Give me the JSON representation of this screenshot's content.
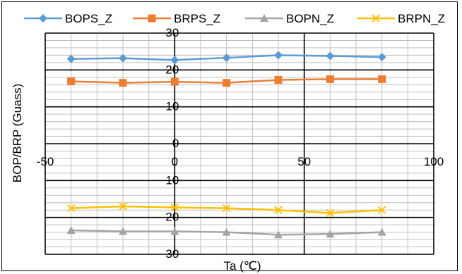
{
  "chart_data": {
    "type": "line",
    "title": "",
    "xlabel": "Ta (℃)",
    "ylabel": "BOP/BRP (Guass)",
    "xlim": [
      -50,
      100
    ],
    "ylim": [
      -30,
      30
    ],
    "x_ticks": [
      "-50",
      "0",
      "50",
      "100"
    ],
    "y_ticks": [
      "30",
      "20",
      "10",
      "0",
      "-10",
      "-20",
      "-30"
    ],
    "grid": true,
    "legend_position": "top",
    "x": [
      -40,
      -20,
      0,
      20,
      40,
      60,
      80
    ],
    "series": [
      {
        "name": "BOPS_Z",
        "color": "#5B9BD5",
        "marker": "diamond",
        "values": [
          23.0,
          23.2,
          22.7,
          23.3,
          24.0,
          23.8,
          23.5
        ]
      },
      {
        "name": "BRPS_Z",
        "color": "#ED7D31",
        "marker": "square",
        "values": [
          16.9,
          16.5,
          16.8,
          16.5,
          17.3,
          17.5,
          17.5
        ]
      },
      {
        "name": "BOPN_Z",
        "color": "#A5A5A5",
        "marker": "triangle",
        "values": [
          -23.5,
          -23.8,
          -23.8,
          -24.0,
          -24.7,
          -24.5,
          -24.0
        ]
      },
      {
        "name": "BRPN_Z",
        "color": "#FFC000",
        "marker": "x",
        "values": [
          -17.5,
          -17.0,
          -17.3,
          -17.5,
          -18.0,
          -18.8,
          -18.0
        ]
      }
    ]
  }
}
